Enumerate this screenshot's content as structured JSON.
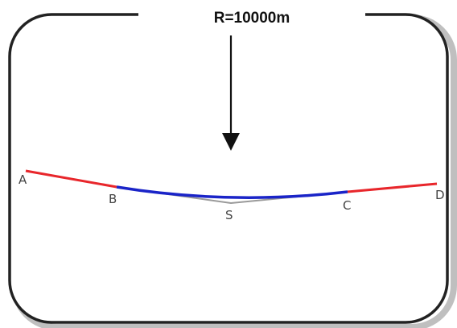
{
  "diagram": {
    "radius_label": "R=10000m",
    "points": {
      "a": "A",
      "b": "B",
      "s": "S",
      "c": "C",
      "d": "D"
    },
    "colors": {
      "frame": "#222222",
      "frame_shadow": "#8a8a8a",
      "tangent": "#e8262b",
      "curve": "#1a24c8",
      "chord": "#9a9a9a",
      "arrow": "#111111"
    }
  }
}
